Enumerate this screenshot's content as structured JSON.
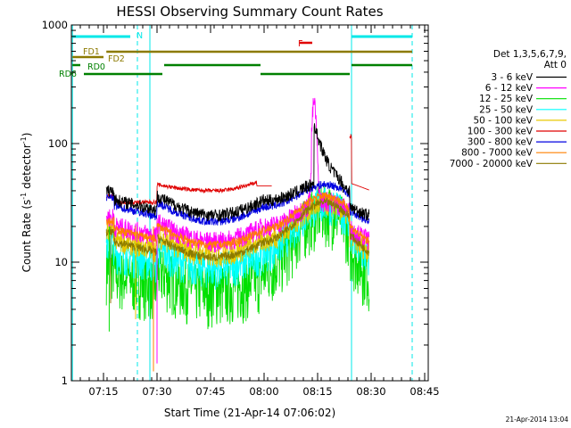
{
  "chart_data": {
    "type": "line",
    "title": "HESSI Observing Summary Count Rates",
    "xlabel": "Start Time (21-Apr-14 07:06:02)",
    "ylabel": "Count Rate (s",
    "ylabel_exp1": "-1",
    "ylabel_mid": " detector",
    "ylabel_exp2": "-1",
    "ylabel_end": ")",
    "footer": "21-Apr-2014 13:04",
    "yscale": "log",
    "ylim": [
      1,
      1000
    ],
    "xlim_minutes": [
      0,
      100
    ],
    "x_ticks": [
      {
        "m": 9,
        "label": "07:15"
      },
      {
        "m": 24,
        "label": "07:30"
      },
      {
        "m": 39,
        "label": "07:45"
      },
      {
        "m": 54,
        "label": "08:00"
      },
      {
        "m": 69,
        "label": "08:15"
      },
      {
        "m": 84,
        "label": "08:30"
      },
      {
        "m": 99,
        "label": "08:45"
      }
    ],
    "y_ticks": [
      {
        "v": 1,
        "label": "1"
      },
      {
        "v": 10,
        "label": "10"
      },
      {
        "v": 100,
        "label": "100"
      },
      {
        "v": 1000,
        "label": "1000"
      }
    ],
    "legend_header": [
      "Det 1,3,5,6,7,9,",
      "Att 0"
    ],
    "series": [
      {
        "name": "3 - 6 keV",
        "color": "#000000"
      },
      {
        "name": "6 - 12 keV",
        "color": "#ff00ff"
      },
      {
        "name": "12 - 25 keV",
        "color": "#00e000"
      },
      {
        "name": "25 - 50 keV",
        "color": "#00ffff"
      },
      {
        "name": "50 - 100 keV",
        "color": "#e8c800"
      },
      {
        "name": "100 - 300 keV",
        "color": "#e00000"
      },
      {
        "name": "300 - 800 keV",
        "color": "#0000e0"
      },
      {
        "name": "800 - 7000 keV",
        "color": "#ff8000"
      },
      {
        "name": "7000 - 20000 keV",
        "color": "#8c7a00"
      }
    ],
    "annotations": {
      "N": {
        "label": "N",
        "color": "#00e8e8"
      },
      "F": {
        "label": "F",
        "color": "#e00000"
      },
      "FD1": {
        "label": "FD1",
        "color": "#8c7a00"
      },
      "FD2": {
        "label": "FD2",
        "color": "#8c7a00"
      },
      "RD0": {
        "label": "RD0",
        "color": "#008000"
      },
      "RD6": {
        "label": "RD6",
        "color": "#008000"
      }
    }
  }
}
